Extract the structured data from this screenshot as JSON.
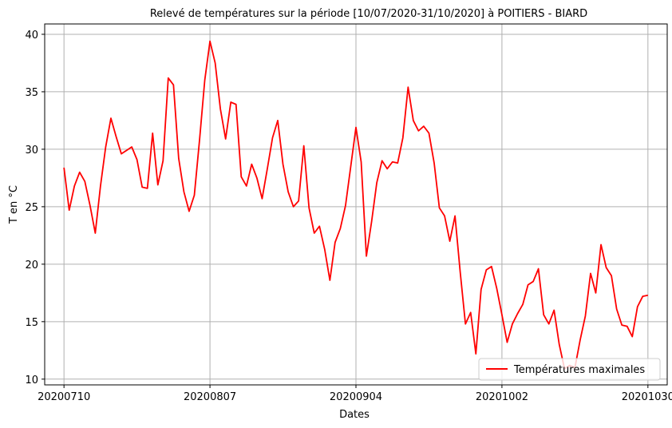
{
  "chart_data": {
    "type": "line",
    "title": "Relevé de températures sur la période [10/07/2020-31/10/2020] à POITIERS - BIARD",
    "xlabel": "Dates",
    "ylabel": "T en °C",
    "x_range_days": [
      0,
      112
    ],
    "ylim": [
      9.5,
      40.9
    ],
    "grid": true,
    "legend_position": "lower-right",
    "x_ticks": [
      {
        "day": 0,
        "label": "20200710"
      },
      {
        "day": 28,
        "label": "20200807"
      },
      {
        "day": 56,
        "label": "20200904"
      },
      {
        "day": 84,
        "label": "20201002"
      },
      {
        "day": 112,
        "label": "20201030"
      }
    ],
    "y_ticks": [
      10,
      15,
      20,
      25,
      30,
      35,
      40
    ],
    "series": [
      {
        "name": "Températures maximales",
        "color": "#ff0000",
        "values": [
          28.4,
          24.7,
          26.8,
          28.0,
          27.2,
          25.1,
          22.7,
          26.8,
          30.2,
          32.7,
          31.1,
          29.6,
          29.9,
          30.2,
          29.1,
          26.7,
          26.6,
          31.4,
          26.9,
          29.0,
          36.2,
          35.6,
          29.2,
          26.3,
          24.6,
          26.0,
          30.8,
          36.0,
          39.4,
          37.5,
          33.5,
          30.9,
          34.1,
          33.9,
          27.6,
          26.8,
          28.7,
          27.5,
          25.7,
          28.3,
          31.0,
          32.5,
          28.7,
          26.3,
          25.0,
          25.5,
          30.3,
          24.9,
          22.7,
          23.3,
          21.3,
          18.6,
          21.9,
          23.1,
          25.1,
          28.5,
          31.9,
          28.9,
          20.7,
          23.7,
          27.1,
          29.0,
          28.3,
          28.9,
          28.8,
          31.0,
          35.4,
          32.5,
          31.6,
          32.0,
          31.4,
          28.8,
          24.9,
          24.2,
          22.0,
          24.2,
          19.3,
          14.8,
          15.8,
          12.2,
          17.8,
          19.5,
          19.8,
          17.9,
          15.6,
          13.2,
          14.8,
          15.7,
          16.5,
          18.2,
          18.5,
          19.6,
          15.6,
          14.8,
          16.0,
          13.0,
          10.9,
          11.2,
          11.0,
          13.4,
          15.5,
          19.2,
          17.5,
          21.7,
          19.7,
          19.0,
          16.1,
          14.7,
          14.6,
          13.7,
          16.3,
          17.2,
          17.3
        ]
      }
    ]
  }
}
